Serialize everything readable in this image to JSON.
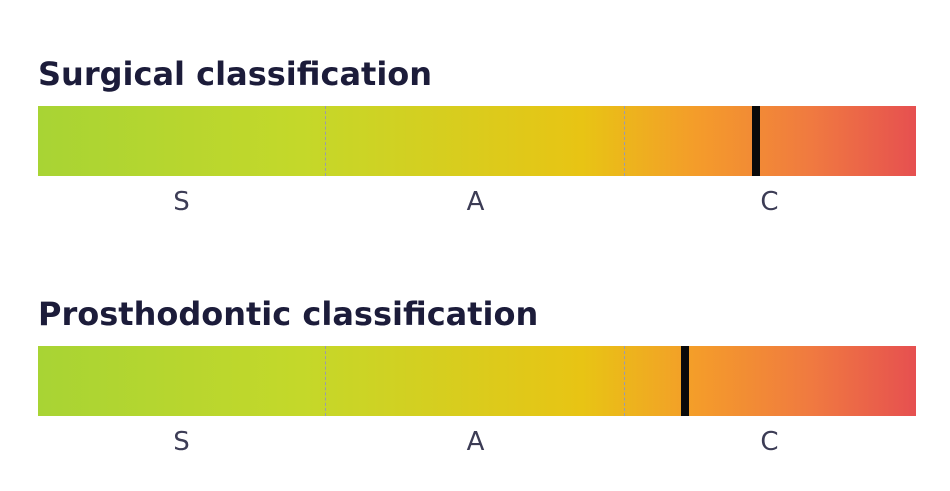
{
  "scales": [
    {
      "title": "Surgical classification",
      "classes": [
        "S",
        "A",
        "C"
      ],
      "marker_fraction": 0.8178,
      "marker_class": "C"
    },
    {
      "title": "Prosthodontic classification",
      "classes": [
        "S",
        "A",
        "C"
      ],
      "marker_fraction": 0.7369,
      "marker_class": "C"
    }
  ],
  "colors": {
    "gradient_start": "#a8d434",
    "gradient_mid": "#e8c414",
    "gradient_end": "#e65050",
    "marker": "#0a0a0a",
    "title": "#1c1c3a",
    "label": "#3c3c55"
  }
}
